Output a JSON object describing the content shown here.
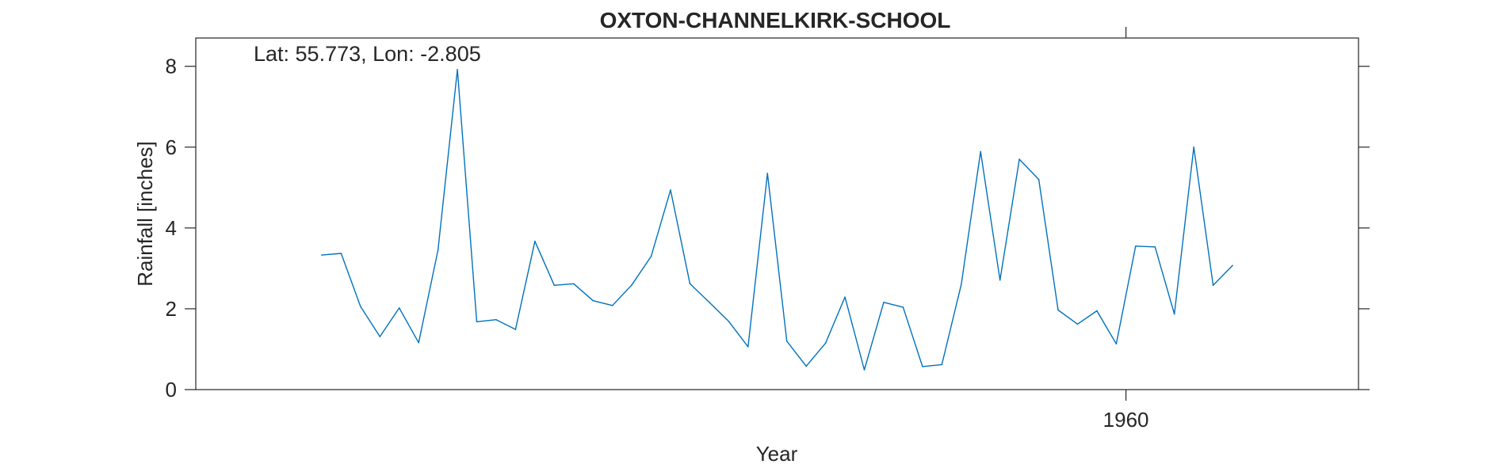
{
  "chart_data": {
    "type": "line",
    "title": "OXTON-CHANNELKIRK-SCHOOL",
    "annotation": "Lat: 55.773, Lon: -2.805",
    "xlabel": "Year",
    "ylabel": "Rainfall [inches]",
    "xlim": [
      1912,
      1972
    ],
    "ylim": [
      0,
      8.7
    ],
    "yticks": [
      0,
      2,
      4,
      6,
      8
    ],
    "ytick_labels": [
      "0",
      "2",
      "4",
      "6",
      "8"
    ],
    "xticks": [
      1960
    ],
    "xtick_labels": [
      "1960"
    ],
    "grid": false,
    "series": [
      {
        "color": "#0072BD",
        "x": [
          1918.5,
          1919.5,
          1920.5,
          1921.5,
          1922.5,
          1923.5,
          1924.5,
          1925.5,
          1926.5,
          1927.5,
          1928.5,
          1929.5,
          1930.5,
          1931.5,
          1932.5,
          1933.5,
          1934.5,
          1935.5,
          1936.5,
          1937.5,
          1938.5,
          1939.5,
          1940.5,
          1941.5,
          1942.5,
          1943.5,
          1944.5,
          1945.5,
          1946.5,
          1947.5,
          1948.5,
          1949.5,
          1950.5,
          1951.5,
          1952.5,
          1953.5,
          1954.5,
          1955.5,
          1956.5,
          1957.5,
          1958.5,
          1959.5,
          1960.5,
          1961.5,
          1962.5,
          1963.5,
          1964.5,
          1965.5
        ],
        "values": [
          3.33,
          3.37,
          2.06,
          1.31,
          2.02,
          1.16,
          3.45,
          7.92,
          1.68,
          1.73,
          1.49,
          3.67,
          2.58,
          2.62,
          2.2,
          2.08,
          2.59,
          3.3,
          4.94,
          2.62,
          2.16,
          1.69,
          1.06,
          5.35,
          1.2,
          0.58,
          1.15,
          2.29,
          0.49,
          2.16,
          2.04,
          0.57,
          0.62,
          2.6,
          5.89,
          2.71,
          5.7,
          5.2,
          1.97,
          1.62,
          1.95,
          1.13,
          3.55,
          3.53,
          1.87,
          6.0,
          2.58,
          3.07
        ]
      }
    ]
  }
}
